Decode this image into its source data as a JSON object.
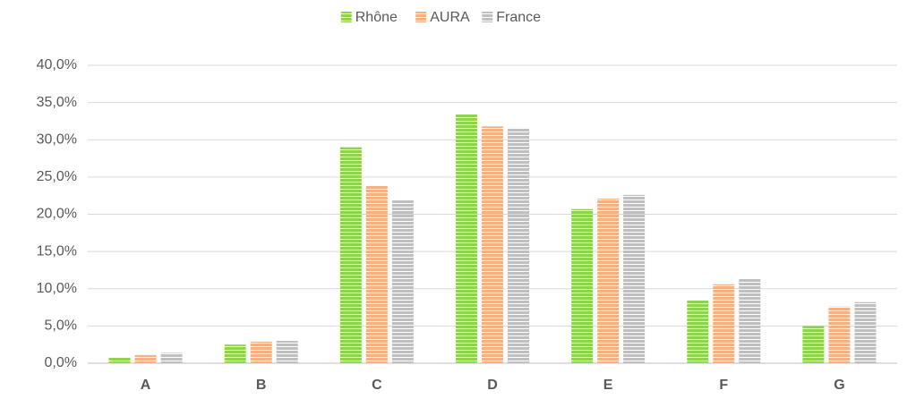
{
  "chart_data": {
    "type": "bar",
    "categories": [
      "A",
      "B",
      "C",
      "D",
      "E",
      "F",
      "G"
    ],
    "series": [
      {
        "name": "Rhône",
        "color": "#92d050",
        "values": [
          0.8,
          2.5,
          29.0,
          33.4,
          20.7,
          8.5,
          5.0
        ]
      },
      {
        "name": "AURA",
        "color": "#f4b183",
        "values": [
          1.1,
          2.9,
          23.8,
          31.8,
          22.1,
          10.6,
          7.6
        ]
      },
      {
        "name": "France",
        "color": "#bfbfbf",
        "values": [
          1.4,
          3.0,
          21.9,
          31.6,
          22.6,
          11.3,
          8.2
        ]
      }
    ],
    "ylim": [
      0,
      40
    ],
    "yticks": [
      {
        "value": 0,
        "label": "0,0%"
      },
      {
        "value": 5,
        "label": "5,0%"
      },
      {
        "value": 10,
        "label": "10,0%"
      },
      {
        "value": 15,
        "label": "15,0%"
      },
      {
        "value": 20,
        "label": "20,0%"
      },
      {
        "value": 25,
        "label": "25,0%"
      },
      {
        "value": 30,
        "label": "30,0%"
      },
      {
        "value": 35,
        "label": "35,0%"
      },
      {
        "value": 40,
        "label": "40,0%"
      }
    ],
    "grid": true,
    "legend": "top"
  }
}
